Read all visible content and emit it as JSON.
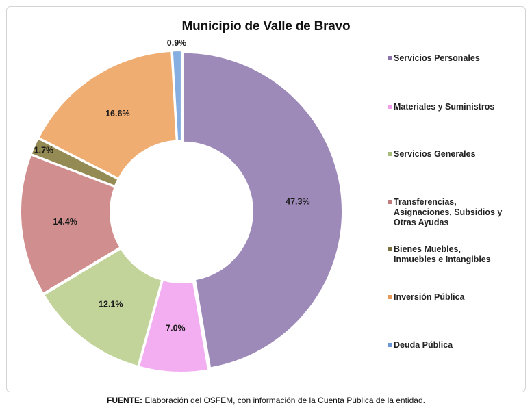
{
  "chart_data": {
    "type": "pie",
    "title": "Municipio de Valle de Bravo",
    "style": "donut",
    "legend_position": "right",
    "categories": [
      "Servicios Personales",
      "Materiales y Suministros",
      "Servicios Generales",
      "Transferencias, Asignaciones, Subsidios y Otras Ayudas",
      "Bienes Muebles, Inmuebles e Intangibles",
      "Inversión Pública",
      "Deuda Pública"
    ],
    "legend_lines": [
      [
        "Servicios Personales"
      ],
      [
        "Materiales y Suministros"
      ],
      [
        "Servicios Generales"
      ],
      [
        "Transferencias,",
        "Asignaciones, Subsidios y",
        "Otras Ayudas"
      ],
      [
        "Bienes Muebles,",
        "Inmuebles e Intangibles"
      ],
      [
        "Inversión Pública"
      ],
      [
        "Deuda Pública"
      ]
    ],
    "values": [
      47.3,
      7.0,
      12.1,
      14.4,
      1.7,
      16.6,
      0.9
    ],
    "data_labels": [
      "47.3%",
      "7.0%",
      "12.1%",
      "14.4%",
      "1.7%",
      "16.6%",
      "0.9%"
    ],
    "colors": [
      "#9d8ab9",
      "#f2aef0",
      "#c3d49b",
      "#d18e8e",
      "#948a54",
      "#f0ad72",
      "#86aee0"
    ],
    "legend_colors": [
      "#8a74a9",
      "#ef9de9",
      "#a8bd7a",
      "#c07d7d",
      "#7a7040",
      "#e89a5a",
      "#6a98d4"
    ]
  },
  "source_note": {
    "label": "FUENTE:",
    "text": " Elaboración del OSFEM, con información de la Cuenta Pública de la entidad."
  }
}
